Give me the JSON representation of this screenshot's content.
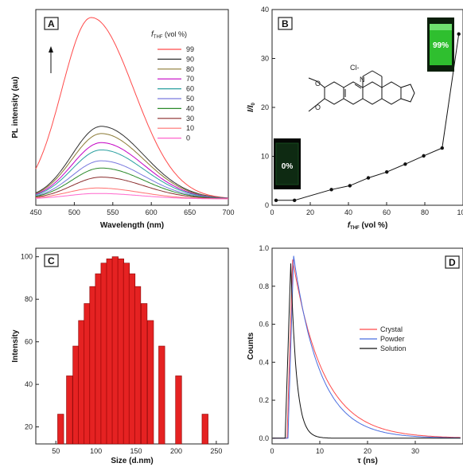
{
  "chart_data": [
    {
      "panel": "A",
      "type": "line",
      "xlabel": "Wavelength (nm)",
      "ylabel": "PL intensity (au)",
      "xlim": [
        450,
        700
      ],
      "xticks": [
        450,
        500,
        550,
        600,
        650,
        700
      ],
      "y_ticks_shown": false,
      "legend_title": "f THF (vol %)",
      "series": [
        {
          "name": "99",
          "color": "#ff4a4a",
          "peak": 522,
          "amp": 100
        },
        {
          "name": "90",
          "color": "#303030",
          "peak": 535,
          "amp": 40
        },
        {
          "name": "80",
          "color": "#8b7a35",
          "peak": 535,
          "amp": 36
        },
        {
          "name": "70",
          "color": "#c400c4",
          "peak": 535,
          "amp": 31
        },
        {
          "name": "60",
          "color": "#2aa0a0",
          "peak": 535,
          "amp": 27
        },
        {
          "name": "50",
          "color": "#7a7adf",
          "peak": 535,
          "amp": 21
        },
        {
          "name": "40",
          "color": "#2b8a2b",
          "peak": 535,
          "amp": 17
        },
        {
          "name": "30",
          "color": "#8a2c2c",
          "peak": 535,
          "amp": 12
        },
        {
          "name": "10",
          "color": "#ff7070",
          "peak": 530,
          "amp": 6
        },
        {
          "name": "0",
          "color": "#ff66cc",
          "peak": 530,
          "amp": 3
        }
      ]
    },
    {
      "panel": "B",
      "type": "scatter",
      "xlabel": "f THF (vol %)",
      "ylabel": "I/I0",
      "xlim": [
        0,
        100
      ],
      "ylim": [
        0,
        40
      ],
      "xticks": [
        0,
        20,
        40,
        60,
        80,
        100
      ],
      "yticks": [
        0,
        10,
        20,
        30,
        40
      ],
      "points": [
        [
          0,
          1.0
        ],
        [
          10,
          1.0
        ],
        [
          30,
          3.2
        ],
        [
          40,
          4.0
        ],
        [
          50,
          5.6
        ],
        [
          60,
          6.8
        ],
        [
          70,
          8.4
        ],
        [
          80,
          10.1
        ],
        [
          90,
          11.7
        ],
        [
          99,
          35.0
        ]
      ],
      "insets": [
        "99%",
        "0%"
      ],
      "structure_label": "Cl-"
    },
    {
      "panel": "C",
      "type": "bar",
      "xlabel": "Size (d.nm)",
      "ylabel": "Intensity",
      "xlim": [
        25,
        265
      ],
      "ylim": [
        12,
        104
      ],
      "xticks": [
        50,
        100,
        150,
        200,
        250
      ],
      "yticks": [
        20,
        40,
        60,
        80,
        100
      ],
      "bar_color": "#e52222",
      "x": [
        56,
        67,
        75,
        82,
        89,
        96,
        103,
        110,
        117,
        124,
        131,
        138,
        145,
        152,
        160,
        168,
        182,
        203,
        236
      ],
      "values": [
        26,
        44,
        58,
        70,
        78,
        86,
        92,
        97,
        99,
        100,
        99,
        97,
        92,
        86,
        78,
        70,
        58,
        44,
        26
      ]
    },
    {
      "panel": "D",
      "type": "line",
      "xlabel": "τ (ns)",
      "ylabel": "Counts",
      "xlim": [
        0,
        40
      ],
      "ylim": [
        -0.03,
        1.0
      ],
      "xticks": [
        0,
        10,
        20,
        30
      ],
      "yticks": [
        0.0,
        0.2,
        0.4,
        0.6,
        0.8,
        1.0
      ],
      "series": [
        {
          "name": "Crystal",
          "color": "#ff4a4a",
          "peak_t": 4.2,
          "peak": 0.94,
          "tau": 6.5
        },
        {
          "name": "Powder",
          "color": "#4a6ee0",
          "peak_t": 4.4,
          "peak": 0.96,
          "tau": 5.6
        },
        {
          "name": "Solution",
          "color": "#111111",
          "peak_t": 3.8,
          "peak": 0.92,
          "tau": 1.2
        }
      ]
    }
  ]
}
